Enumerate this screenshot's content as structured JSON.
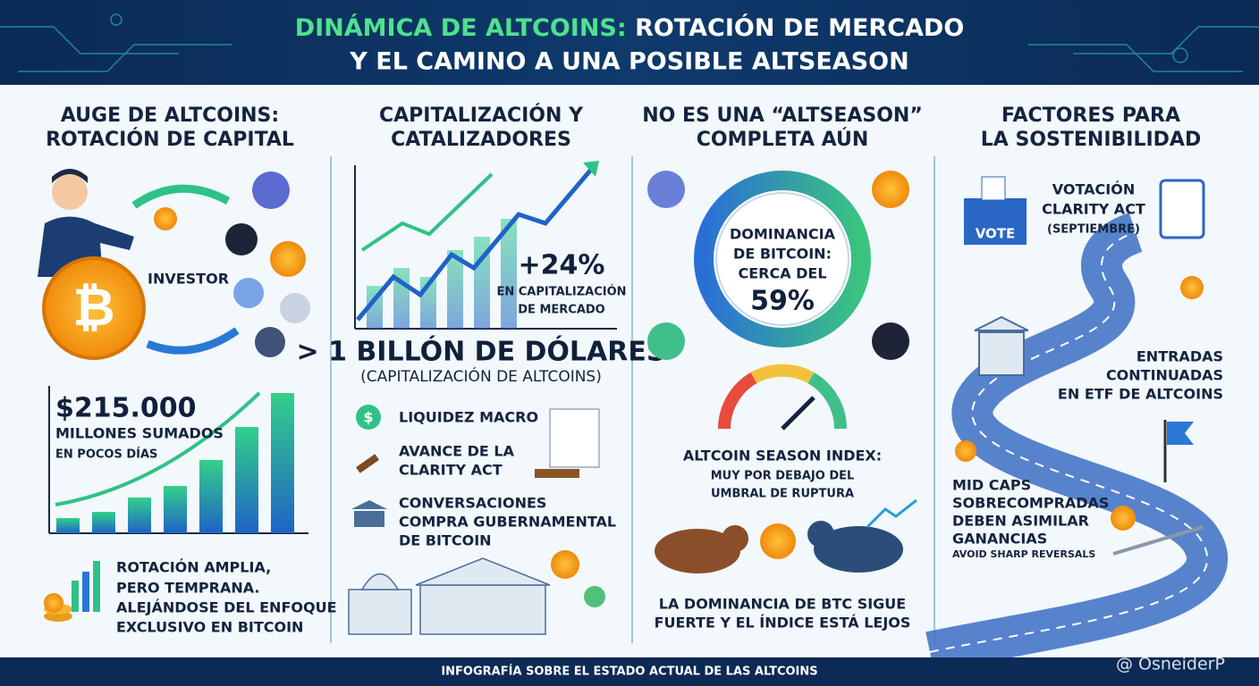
{
  "header": {
    "title_highlight": "DINÁMICA DE ALTCOINS:",
    "title_rest": "ROTACIÓN DE MERCADO",
    "title_line2": "Y EL CAMINO A UNA POSIBLE ALTSEASON"
  },
  "sections": [
    {
      "title": [
        "AUGE DE ALTCOINS:",
        "ROTACIÓN DE CAPITAL"
      ],
      "investor_label": "INVESTOR",
      "stat_value": "$215.000",
      "stat_text": [
        "MILLONES SUMADOS",
        "EN POCOS DÍAS"
      ],
      "note": [
        "ROTACIÓN AMPLIA,",
        "PERO TEMPRANA.",
        "ALEJÁNDOSE DEL ENFOQUE",
        "EXCLUSIVO EN BITCOIN"
      ]
    },
    {
      "title": [
        "CAPITALIZACIÓN Y",
        "CATALIZADORES"
      ],
      "growth_value": "+24%",
      "growth_text": [
        "EN CAPITALIZACIÓN",
        "DE MERCADO"
      ],
      "total_value": "> 1 BILLÓN DE DÓLARES",
      "total_text": "(CAPITALIZACIÓN DE ALTCOINS)",
      "catalysts": [
        [
          "LIQUIDEZ MACRO"
        ],
        [
          "AVANCE DE LA",
          "CLARITY ACT"
        ],
        [
          "CONVERSACIONES",
          "COMPRA GUBERNAMENTAL",
          "DE BITCOIN"
        ]
      ]
    },
    {
      "title": [
        "NO ES UNA “ALTSEASON”",
        "COMPLETA AÚN"
      ],
      "dominance_text": [
        "DOMINANCIA",
        "DE BITCOIN:",
        "CERCA DEL"
      ],
      "dominance_value": "59%",
      "index_title": "ALTCOIN SEASON INDEX:",
      "index_text": [
        "MUY POR DEBAJO DEL",
        "UMBRAL DE RUPTURA"
      ],
      "conclusion": [
        "LA DOMINANCIA DE BTC SIGUE",
        "FUERTE Y EL ÍNDICE ESTÁ LEJOS"
      ]
    },
    {
      "title": [
        "FACTORES PARA",
        "LA SOSTENIBILIDAD"
      ],
      "vote_label": "VOTE",
      "vote_text": [
        "VOTACIÓN",
        "CLARITY ACT",
        "(SEPTIEMBRE)"
      ],
      "etf_text": [
        "ENTRADAS",
        "CONTINUADAS",
        "EN ETF DE ALTCOINS"
      ],
      "midcaps_text": [
        "MID CAPS",
        "SOBRECOMPRADAS",
        "DEBEN ASIMILAR",
        "GANANCIAS"
      ],
      "midcaps_note": "AVOID SHARP REVERSALS"
    }
  ],
  "footer": {
    "caption": "INFOGRAFÍA SOBRE EL ESTADO ACTUAL DE LAS ALTCOINS",
    "watermark": "@ OsneiderP"
  }
}
